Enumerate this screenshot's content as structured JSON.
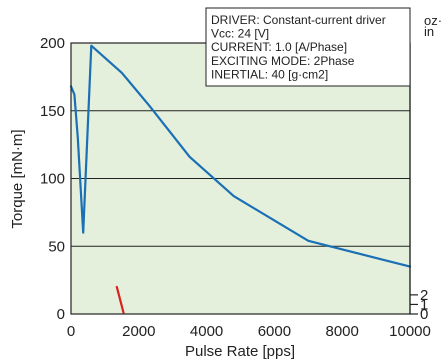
{
  "chart_data": {
    "type": "line",
    "xlabel": "Pulse Rate [pps]",
    "ylabel": "Torque [mN·m]",
    "xlim": [
      0,
      10000
    ],
    "ylim": [
      0,
      200
    ],
    "x_ticks": [
      "0",
      "2000",
      "4000",
      "6000",
      "8000",
      "10000"
    ],
    "y_ticks": [
      "0",
      "50",
      "100",
      "150",
      "200"
    ],
    "right_axis": {
      "unit": "oz·in",
      "unit_line1": "oz·",
      "unit_line2": "in",
      "ticks": [
        {
          "label": "0",
          "value": 0
        },
        {
          "label": "1",
          "value": 7.06
        },
        {
          "label": "2",
          "value": 14.12
        }
      ]
    },
    "grid": "horizontal",
    "background_color": "#e4f0dc",
    "series": [
      {
        "color": "#1a6fb5",
        "x": [
          0,
          100,
          200,
          360,
          480,
          600,
          1500,
          2300,
          3500,
          4800,
          7000,
          10000
        ],
        "y": [
          168,
          162,
          130,
          60,
          130,
          198,
          178,
          154,
          116,
          87,
          54,
          35
        ]
      },
      {
        "color": "#d9221c",
        "x": [
          1350,
          1550
        ],
        "y": [
          20,
          1
        ]
      }
    ],
    "info_box": {
      "lines": [
        "DRIVER: Constant-current driver",
        "Vcc: 24 [V]",
        "CURRENT: 1.0 [A/Phase]",
        "EXCITING MODE: 2Phase",
        "INERTIAL: 40 [g·cm2]"
      ]
    }
  }
}
